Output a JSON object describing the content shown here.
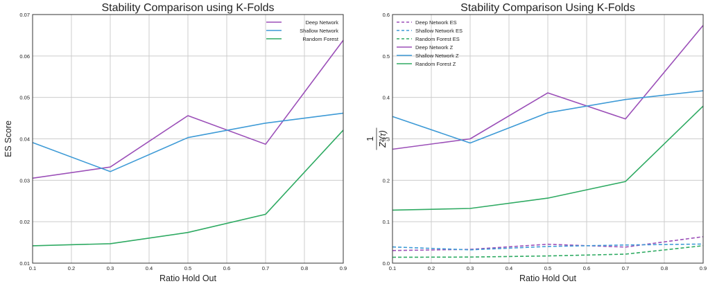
{
  "chart_data": [
    {
      "type": "line",
      "title": "Stability Comparison using K-Folds",
      "xlabel": "Ratio Hold Out",
      "ylabel": "ES Score",
      "xlim": [
        0.1,
        0.9
      ],
      "ylim": [
        0.01,
        0.07
      ],
      "grid": true,
      "legend_position": "top-right",
      "x": [
        0.1,
        0.3,
        0.5,
        0.7,
        0.9
      ],
      "x_ticks": [
        "0.1",
        "0.2",
        "0.3",
        "0.4",
        "0.5",
        "0.6",
        "0.7",
        "0.8",
        "0.9"
      ],
      "y_ticks": [
        "0.01",
        "0.02",
        "0.03",
        "0.04",
        "0.05",
        "0.06",
        "0.07"
      ],
      "series": [
        {
          "name": "Deep Network",
          "color": "#9b4fb8",
          "style": "solid",
          "values": [
            0.0305,
            0.0332,
            0.0456,
            0.0387,
            0.0638
          ]
        },
        {
          "name": "Shallow Network",
          "color": "#3d9ad6",
          "style": "solid",
          "values": [
            0.0391,
            0.0321,
            0.0403,
            0.0438,
            0.0462
          ]
        },
        {
          "name": "Random Forest",
          "color": "#2eaa62",
          "style": "solid",
          "values": [
            0.0142,
            0.0147,
            0.0174,
            0.0218,
            0.0421
          ]
        }
      ]
    },
    {
      "type": "line",
      "title": "Stability Comparison Using K-Folds",
      "xlabel": "Ratio Hold Out",
      "ylabel_numerator": "1",
      "ylabel_denominator": "Z²(τ)",
      "xlim": [
        0.1,
        0.9
      ],
      "ylim": [
        0.0,
        0.6
      ],
      "grid": true,
      "legend_position": "top-left",
      "x": [
        0.1,
        0.3,
        0.5,
        0.7,
        0.9
      ],
      "x_ticks": [
        "0.1",
        "0.2",
        "0.3",
        "0.4",
        "0.5",
        "0.6",
        "0.7",
        "0.8",
        "0.9"
      ],
      "y_ticks": [
        "0.0",
        "0.1",
        "0.2",
        "0.3",
        "0.4",
        "0.5",
        "0.6"
      ],
      "series": [
        {
          "name": "Deep Network ES",
          "color": "#9b4fb8",
          "style": "dashed",
          "values": [
            0.0305,
            0.0332,
            0.0456,
            0.0387,
            0.0638
          ]
        },
        {
          "name": "Shallow Network ES",
          "color": "#3d9ad6",
          "style": "dashed",
          "values": [
            0.0391,
            0.0321,
            0.0403,
            0.0438,
            0.0462
          ]
        },
        {
          "name": "Random Forest ES",
          "color": "#2eaa62",
          "style": "dashed",
          "values": [
            0.0142,
            0.0147,
            0.0174,
            0.0218,
            0.0421
          ]
        },
        {
          "name": "Deep Network Z",
          "color": "#9b4fb8",
          "style": "solid",
          "values": [
            0.275,
            0.3,
            0.411,
            0.348,
            0.574
          ]
        },
        {
          "name": "Shallow Network Z",
          "color": "#3d9ad6",
          "style": "solid",
          "values": [
            0.354,
            0.29,
            0.363,
            0.395,
            0.416
          ]
        },
        {
          "name": "Random Forest Z",
          "color": "#2eaa62",
          "style": "solid",
          "values": [
            0.128,
            0.132,
            0.157,
            0.197,
            0.379
          ]
        }
      ]
    }
  ]
}
